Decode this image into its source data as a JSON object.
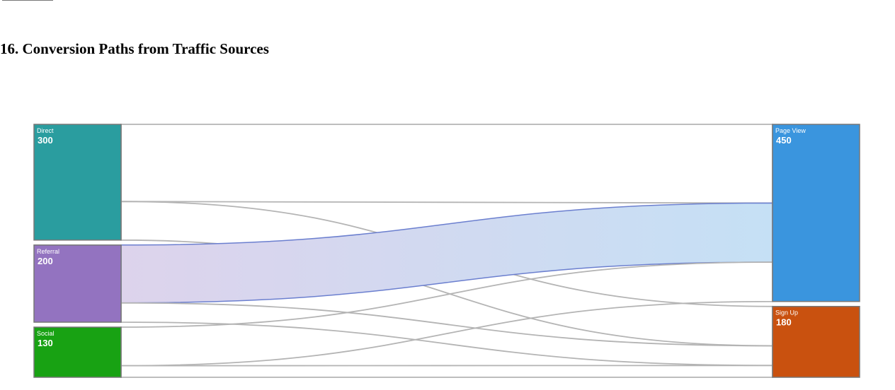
{
  "page": {
    "title": "16. Conversion Paths from Traffic Sources"
  },
  "chart_data": {
    "type": "sankey",
    "title": "16. Conversion Paths from Traffic Sources",
    "nodes": [
      {
        "id": "direct",
        "name": "Direct",
        "value": 300,
        "color": "#2a9d9f",
        "column": 0
      },
      {
        "id": "referral",
        "name": "Referral",
        "value": 200,
        "color": "#9373c0",
        "column": 0
      },
      {
        "id": "social",
        "name": "Social",
        "value": 130,
        "color": "#18a213",
        "column": 0
      },
      {
        "id": "pageview",
        "name": "Page View",
        "value": 450,
        "color": "#3a95de",
        "column": 1
      },
      {
        "id": "signup",
        "name": "Sign Up",
        "value": 180,
        "color": "#c9510f",
        "column": 1
      }
    ],
    "links": [
      {
        "source": "direct",
        "target": "pageview",
        "value": 200
      },
      {
        "source": "direct",
        "target": "signup",
        "value": 100
      },
      {
        "source": "referral",
        "target": "pageview",
        "value": 150,
        "highlighted": true
      },
      {
        "source": "referral",
        "target": "signup",
        "value": 50
      },
      {
        "source": "social",
        "target": "pageview",
        "value": 100
      },
      {
        "source": "social",
        "target": "signup",
        "value": 30
      }
    ],
    "highlight_gradient": [
      "#ddd3ec",
      "#c5e0f5"
    ],
    "link_stroke_color": "#b4b4b4",
    "highlight_stroke_color": "#6b7fcf"
  }
}
